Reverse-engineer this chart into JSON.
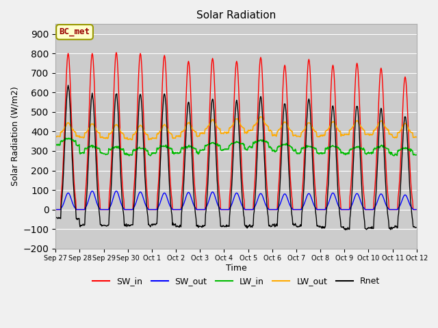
{
  "title": "Solar Radiation",
  "ylabel": "Solar Radiation (W/m2)",
  "xlabel": "Time",
  "ylim": [
    -200,
    950
  ],
  "yticks": [
    -200,
    -100,
    0,
    100,
    200,
    300,
    400,
    500,
    600,
    700,
    800,
    900
  ],
  "bg_color": "#cccccc",
  "fig_bg": "#f0f0f0",
  "annotation_text": "BC_met",
  "annotation_bg": "#ffffcc",
  "annotation_border": "#999900",
  "annotation_text_color": "#990000",
  "series_colors": {
    "SW_in": "#ff0000",
    "SW_out": "#0000ff",
    "LW_in": "#00bb00",
    "LW_out": "#ffaa00",
    "Rnet": "#000000"
  },
  "n_days": 15,
  "hours_per_day": 24,
  "dt_hours": 0.5,
  "tick_labels": [
    "Sep 27",
    "Sep 28",
    "Sep 29",
    "Sep 30",
    "Oct 1",
    "Oct 2",
    "Oct 3",
    "Oct 4",
    "Oct 5",
    "Oct 6",
    "Oct 7",
    "Oct 8",
    "Oct 9",
    "Oct 10",
    "Oct 11",
    "Oct 12"
  ],
  "grid_color": "#ffffff",
  "SW_in_peaks": [
    800,
    800,
    805,
    800,
    790,
    760,
    775,
    760,
    780,
    740,
    770,
    740,
    750,
    725,
    680
  ],
  "SW_out_peaks": [
    85,
    95,
    95,
    90,
    85,
    88,
    90,
    85,
    82,
    80,
    82,
    85,
    82,
    80,
    75
  ],
  "LW_in_base": [
    350,
    310,
    305,
    300,
    310,
    310,
    325,
    330,
    340,
    320,
    310,
    310,
    305,
    310,
    300
  ],
  "LW_out_base": [
    395,
    390,
    385,
    380,
    385,
    395,
    410,
    415,
    425,
    400,
    395,
    400,
    405,
    405,
    390
  ]
}
